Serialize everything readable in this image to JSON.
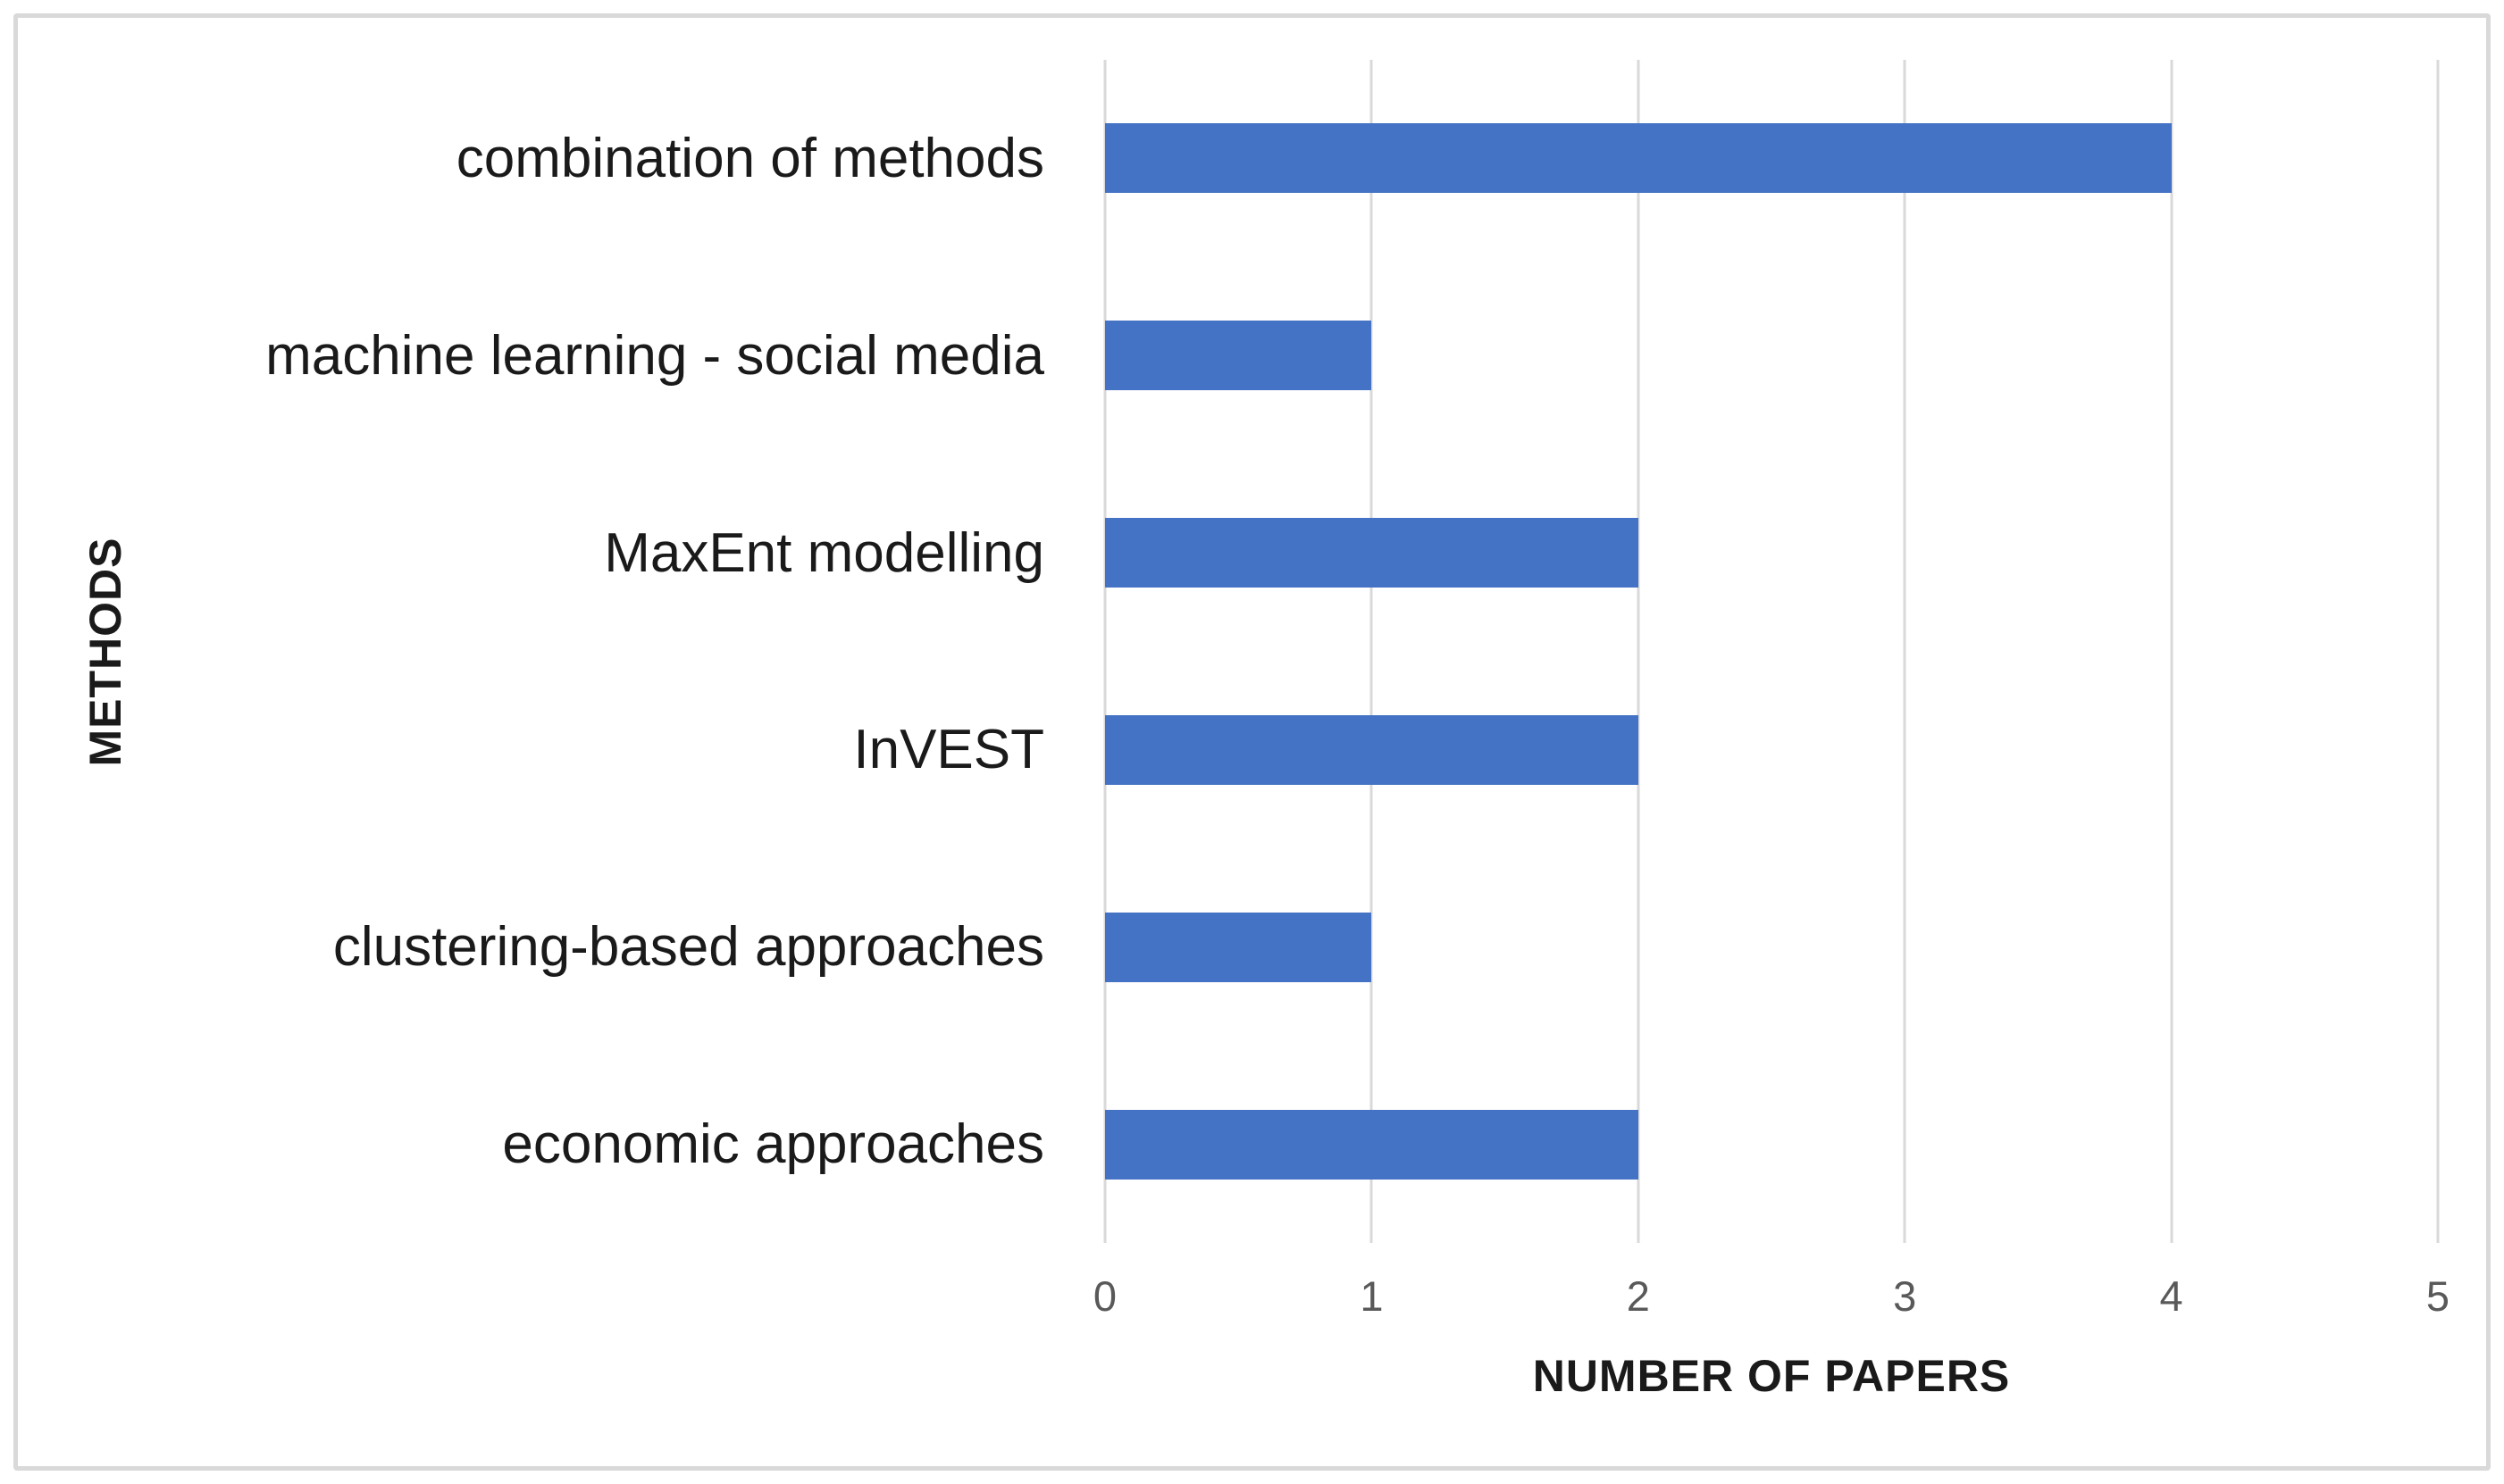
{
  "chart_data": {
    "type": "bar",
    "orientation": "horizontal",
    "title": "",
    "categories": [
      "combination of methods",
      "machine learning - social media",
      "MaxEnt modelling",
      "InVEST",
      "clustering-based approaches",
      "economic approaches"
    ],
    "values": [
      4,
      1,
      2,
      2,
      1,
      2
    ],
    "xlabel": "NUMBER OF PAPERS",
    "ylabel": "METHODS",
    "xlim": [
      0,
      5
    ],
    "xticks": [
      "0",
      "1",
      "2",
      "3",
      "4",
      "5"
    ],
    "grid": true,
    "legend": false,
    "colors": {
      "bar": "#4472c4",
      "gridline": "#d9d9d9",
      "frame_border": "#d9d9d9",
      "tick_text": "#595959",
      "category_text": "#1a1a1a",
      "axis_title_text": "#1a1a1a",
      "background": "#ffffff"
    }
  }
}
